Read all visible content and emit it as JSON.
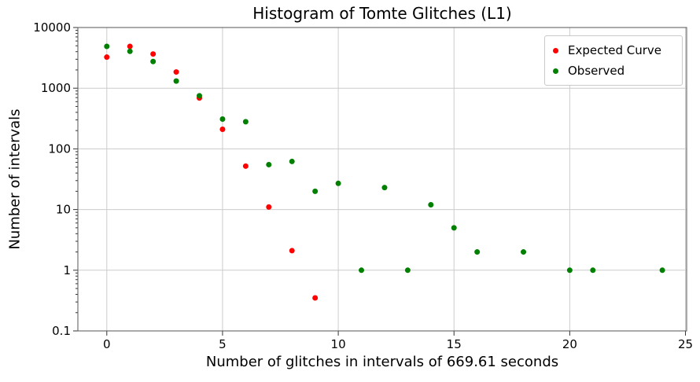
{
  "figure": {
    "kind": "matplotlib-style scatter figure"
  },
  "chart_data": {
    "type": "scatter",
    "title": "Histogram of Tomte Glitches (L1)",
    "xlabel": "Number of glitches in intervals of 669.61 seconds",
    "ylabel": "Number of intervals",
    "x_scale": "linear",
    "y_scale": "log",
    "xlim": [
      -1.25,
      25.05
    ],
    "ylim": [
      0.1,
      10000
    ],
    "x_ticks": [
      0,
      5,
      10,
      15,
      20,
      25
    ],
    "y_tick_values": [
      10000,
      1000,
      100,
      10,
      1,
      0.1
    ],
    "y_tick_labels": [
      "10000",
      "1000",
      "100",
      "10",
      "1",
      "0.1"
    ],
    "grid": true,
    "legend_position": "upper right",
    "colors": {
      "grid": "#cccccc",
      "spine": "#555555",
      "tick": "#333333",
      "text": "#000000"
    },
    "series": [
      {
        "name": "Expected Curve",
        "color": "#ff0000",
        "marker": "dot",
        "x": [
          0,
          1,
          2,
          3,
          4,
          5,
          6,
          7,
          8,
          9
        ],
        "y": [
          3250,
          4880,
          3660,
          1850,
          690,
          210,
          52,
          11,
          2.1,
          0.35
        ]
      },
      {
        "name": "Observed",
        "color": "#008000",
        "marker": "dot",
        "x": [
          0,
          1,
          2,
          3,
          4,
          5,
          6,
          7,
          8,
          9,
          10,
          11,
          12,
          13,
          14,
          15,
          16,
          18,
          20,
          21,
          24
        ],
        "y": [
          4890,
          4050,
          2750,
          1310,
          750,
          310,
          280,
          55,
          62,
          20,
          27,
          1,
          23,
          1,
          12,
          5,
          2,
          2,
          1,
          1,
          1
        ]
      }
    ]
  }
}
